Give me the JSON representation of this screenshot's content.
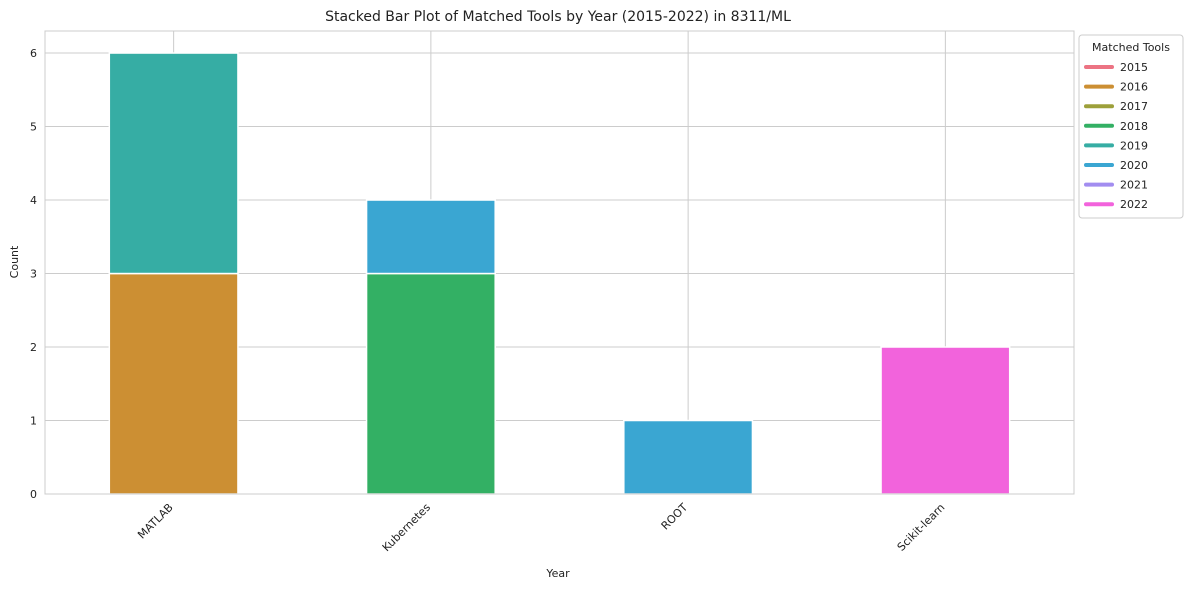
{
  "chart_data": {
    "type": "bar",
    "stacked": true,
    "title": "Stacked Bar Plot of Matched Tools by Year (2015-2022) in 8311/ML",
    "xlabel": "Year",
    "ylabel": "Count",
    "categories": [
      "MATLAB",
      "Kubernetes",
      "ROOT",
      "Scikit-learn"
    ],
    "yticks": [
      "0",
      "1",
      "2",
      "3",
      "4",
      "5",
      "6"
    ],
    "ylim": [
      0,
      6.3
    ],
    "grid": true,
    "legend_title": "Matched Tools",
    "legend_position": "outside top-right",
    "series": [
      {
        "name": "2015",
        "color": "#ec7383",
        "values": [
          0,
          0,
          0,
          0
        ]
      },
      {
        "name": "2016",
        "color": "#cc8f33",
        "values": [
          3,
          0,
          0,
          0
        ]
      },
      {
        "name": "2017",
        "color": "#9da03a",
        "values": [
          0,
          0,
          0,
          0
        ]
      },
      {
        "name": "2018",
        "color": "#33b064",
        "values": [
          0,
          3,
          0,
          0
        ]
      },
      {
        "name": "2019",
        "color": "#36ada4",
        "values": [
          3,
          0,
          0,
          0
        ]
      },
      {
        "name": "2020",
        "color": "#3aa6d2",
        "values": [
          0,
          1,
          1,
          0
        ]
      },
      {
        "name": "2021",
        "color": "#a28df0",
        "values": [
          0,
          0,
          0,
          0
        ]
      },
      {
        "name": "2022",
        "color": "#f263dc",
        "values": [
          0,
          0,
          0,
          2
        ]
      }
    ]
  }
}
